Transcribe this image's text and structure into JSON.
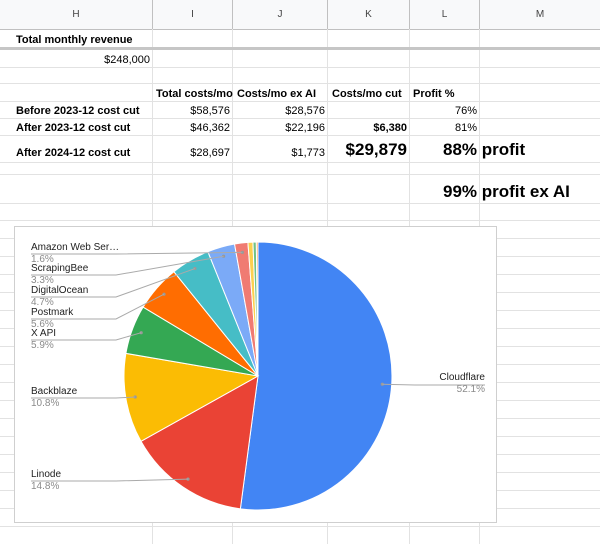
{
  "columns": [
    "H",
    "I",
    "J",
    "K",
    "L",
    "M"
  ],
  "sheet": {
    "title": "Total monthly revenue",
    "revenue": "$248,000",
    "headers": {
      "total_costs": "Total costs/mo",
      "costs_ex_ai": "Costs/mo ex AI",
      "costs_cut": "Costs/mo cut",
      "profit": "Profit %"
    },
    "rows": [
      {
        "label": "Before 2023-12 cost cut",
        "total": "$58,576",
        "ex_ai": "$28,576",
        "cut": "",
        "profit": "76%"
      },
      {
        "label": "After 2023-12 cost cut",
        "total": "$46,362",
        "ex_ai": "$22,196",
        "cut": "$6,380",
        "profit": "81%"
      },
      {
        "label": "After 2024-12 cost cut",
        "total": "$28,697",
        "ex_ai": "$1,773",
        "cut": "$29,879",
        "profit": "88% profit"
      }
    ],
    "note": "99% profit ex AI"
  },
  "chart_data": {
    "type": "pie",
    "slices": [
      {
        "label": "Cloudflare",
        "value": 52.1,
        "display": "52.1%",
        "color": "#4285f4"
      },
      {
        "label": "Linode",
        "value": 14.8,
        "display": "14.8%",
        "color": "#ea4335"
      },
      {
        "label": "Backblaze",
        "value": 10.8,
        "display": "10.8%",
        "color": "#fbbc04"
      },
      {
        "label": "X API",
        "value": 5.9,
        "display": "5.9%",
        "color": "#34a853"
      },
      {
        "label": "Postmark",
        "value": 5.6,
        "display": "5.6%",
        "color": "#ff6d01"
      },
      {
        "label": "DigitalOcean",
        "value": 4.7,
        "display": "4.7%",
        "color": "#46bdc6"
      },
      {
        "label": "ScrapingBee",
        "value": 3.3,
        "display": "3.3%",
        "color": "#7baaf7"
      },
      {
        "label": "Amazon Web Ser…",
        "value": 1.6,
        "display": "1.6%",
        "color": "#f07b72"
      },
      {
        "label": "",
        "value": 0.6,
        "display": "",
        "color": "#fcd04f"
      },
      {
        "label": "",
        "value": 0.4,
        "display": "",
        "color": "#71c287"
      },
      {
        "label": "",
        "value": 0.2,
        "display": "",
        "color": "#ff994d"
      }
    ]
  }
}
